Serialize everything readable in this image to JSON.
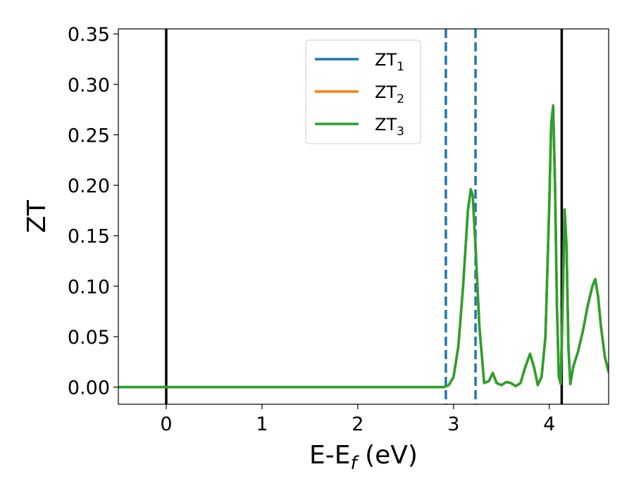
{
  "chart_data": {
    "type": "line",
    "title": "",
    "xlabel": {
      "main": "E-E",
      "sub": "f",
      "suffix": " (eV)"
    },
    "ylabel": "ZT",
    "xlim": [
      -0.5,
      4.62
    ],
    "ylim": [
      -0.017,
      0.355
    ],
    "x_ticks": [
      0,
      1,
      2,
      3,
      4
    ],
    "y_ticks": [
      0.0,
      0.05,
      0.1,
      0.15,
      0.2,
      0.25,
      0.3,
      0.35
    ],
    "y_tick_labels": [
      "0.00",
      "0.05",
      "0.10",
      "0.15",
      "0.20",
      "0.25",
      "0.30",
      "0.35"
    ],
    "grid": false,
    "legend_position": "top-center",
    "vlines": [
      {
        "x": 0.0,
        "style": "solid",
        "color": "#000000"
      },
      {
        "x": 4.13,
        "style": "solid",
        "color": "#000000"
      },
      {
        "x": 2.92,
        "style": "dashed",
        "color": "#1f77b4"
      },
      {
        "x": 3.23,
        "style": "dashed",
        "color": "#1f77b4"
      }
    ],
    "series": [
      {
        "name": {
          "main": "ZT",
          "sub": "1"
        },
        "color": "#1f77b4",
        "x": [
          -0.5,
          2.9,
          2.95,
          3.0,
          3.05,
          3.1,
          3.15,
          3.18,
          3.2,
          3.23,
          3.27,
          3.32,
          3.37,
          3.41,
          3.45,
          3.5,
          3.55,
          3.6,
          3.65,
          3.7,
          3.75,
          3.8,
          3.84,
          3.88,
          3.92,
          3.96,
          4.0,
          4.02,
          4.04,
          4.06,
          4.08,
          4.1,
          4.12,
          4.14,
          4.16,
          4.18,
          4.2,
          4.22,
          4.25,
          4.3,
          4.35,
          4.4,
          4.45,
          4.48,
          4.51,
          4.54,
          4.58,
          4.62
        ],
        "y": [
          0.0,
          0.0,
          0.002,
          0.01,
          0.04,
          0.1,
          0.175,
          0.196,
          0.19,
          0.14,
          0.06,
          0.004,
          0.006,
          0.014,
          0.004,
          0.002,
          0.005,
          0.004,
          0.001,
          0.004,
          0.02,
          0.033,
          0.02,
          0.002,
          0.01,
          0.05,
          0.18,
          0.26,
          0.279,
          0.2,
          0.08,
          0.01,
          0.003,
          0.08,
          0.176,
          0.14,
          0.04,
          0.003,
          0.02,
          0.035,
          0.055,
          0.08,
          0.1,
          0.107,
          0.09,
          0.06,
          0.03,
          0.015
        ]
      },
      {
        "name": {
          "main": "ZT",
          "sub": "2"
        },
        "color": "#ff7f0e",
        "x": [
          -0.5,
          2.9,
          2.95,
          3.0,
          3.05,
          3.1,
          3.15,
          3.18,
          3.2,
          3.23,
          3.27,
          3.32,
          3.37,
          3.41,
          3.45,
          3.5,
          3.55,
          3.6,
          3.65,
          3.7,
          3.75,
          3.8,
          3.84,
          3.88,
          3.92,
          3.96,
          4.0,
          4.02,
          4.04,
          4.06,
          4.08,
          4.1,
          4.12,
          4.14,
          4.16,
          4.18,
          4.2,
          4.22,
          4.25,
          4.3,
          4.35,
          4.4,
          4.45,
          4.48,
          4.51,
          4.54,
          4.58,
          4.62
        ],
        "y": [
          0.0,
          0.0,
          0.002,
          0.01,
          0.04,
          0.1,
          0.175,
          0.196,
          0.19,
          0.14,
          0.06,
          0.004,
          0.006,
          0.014,
          0.004,
          0.002,
          0.005,
          0.004,
          0.001,
          0.004,
          0.02,
          0.033,
          0.02,
          0.002,
          0.01,
          0.05,
          0.18,
          0.26,
          0.279,
          0.2,
          0.08,
          0.01,
          0.003,
          0.08,
          0.176,
          0.14,
          0.04,
          0.003,
          0.02,
          0.035,
          0.055,
          0.08,
          0.1,
          0.107,
          0.09,
          0.06,
          0.03,
          0.015
        ]
      },
      {
        "name": {
          "main": "ZT",
          "sub": "3"
        },
        "color": "#2ca02c",
        "x": [
          -0.5,
          2.9,
          2.95,
          3.0,
          3.05,
          3.1,
          3.15,
          3.18,
          3.2,
          3.23,
          3.27,
          3.32,
          3.37,
          3.41,
          3.45,
          3.5,
          3.55,
          3.6,
          3.65,
          3.7,
          3.75,
          3.8,
          3.84,
          3.88,
          3.92,
          3.96,
          4.0,
          4.02,
          4.04,
          4.06,
          4.08,
          4.1,
          4.12,
          4.14,
          4.16,
          4.18,
          4.2,
          4.22,
          4.25,
          4.3,
          4.35,
          4.4,
          4.45,
          4.48,
          4.51,
          4.54,
          4.58,
          4.62
        ],
        "y": [
          0.0,
          0.0,
          0.002,
          0.01,
          0.04,
          0.1,
          0.175,
          0.196,
          0.19,
          0.14,
          0.06,
          0.004,
          0.006,
          0.014,
          0.004,
          0.002,
          0.005,
          0.004,
          0.001,
          0.004,
          0.02,
          0.033,
          0.02,
          0.002,
          0.01,
          0.05,
          0.18,
          0.26,
          0.279,
          0.2,
          0.08,
          0.01,
          0.003,
          0.08,
          0.176,
          0.14,
          0.04,
          0.003,
          0.02,
          0.035,
          0.055,
          0.08,
          0.1,
          0.107,
          0.09,
          0.06,
          0.03,
          0.015
        ]
      }
    ]
  }
}
